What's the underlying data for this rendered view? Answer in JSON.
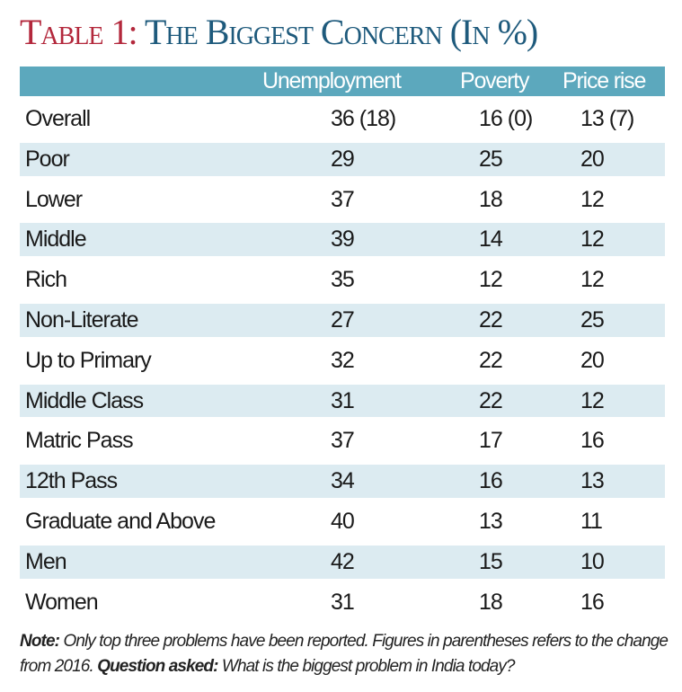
{
  "chart_data": {
    "type": "table",
    "title_prefix": "Table 1:",
    "title": "The Biggest Concern (In %)",
    "columns": [
      "",
      "Unemployment",
      "Poverty",
      "Price rise"
    ],
    "rows": [
      {
        "label": "Overall",
        "values": [
          "36 (18)",
          "16 (0)",
          "13 (7)"
        ]
      },
      {
        "label": "Poor",
        "values": [
          "29",
          "25",
          "20"
        ]
      },
      {
        "label": "Lower",
        "values": [
          "37",
          "18",
          "12"
        ]
      },
      {
        "label": "Middle",
        "values": [
          "39",
          "14",
          "12"
        ]
      },
      {
        "label": "Rich",
        "values": [
          "35",
          "12",
          "12"
        ]
      },
      {
        "label": "Non-Literate",
        "values": [
          "27",
          "22",
          "25"
        ]
      },
      {
        "label": "Up to Primary",
        "values": [
          "32",
          "22",
          "20"
        ]
      },
      {
        "label": "Middle Class",
        "values": [
          "31",
          "22",
          "12"
        ]
      },
      {
        "label": "Matric Pass",
        "values": [
          "37",
          "17",
          "16"
        ]
      },
      {
        "label": "12th Pass",
        "values": [
          "34",
          "16",
          "13"
        ]
      },
      {
        "label": "Graduate and Above",
        "values": [
          "40",
          "13",
          "11"
        ]
      },
      {
        "label": "Men",
        "values": [
          "42",
          "15",
          "10"
        ]
      },
      {
        "label": "Women",
        "values": [
          "31",
          "18",
          "16"
        ]
      }
    ],
    "note": {
      "note_label": "Note:",
      "note_text": " Only top three problems have been reported. Figures in parentheses refers to the change from 2016. ",
      "question_label": "Question asked:",
      "question_text": " What is the biggest problem in India today?"
    },
    "colors": {
      "title_prefix": "#b3283c",
      "title": "#1e5a7c",
      "header_bg": "#5ca8bd",
      "row_shade": "#dcebf1"
    }
  }
}
